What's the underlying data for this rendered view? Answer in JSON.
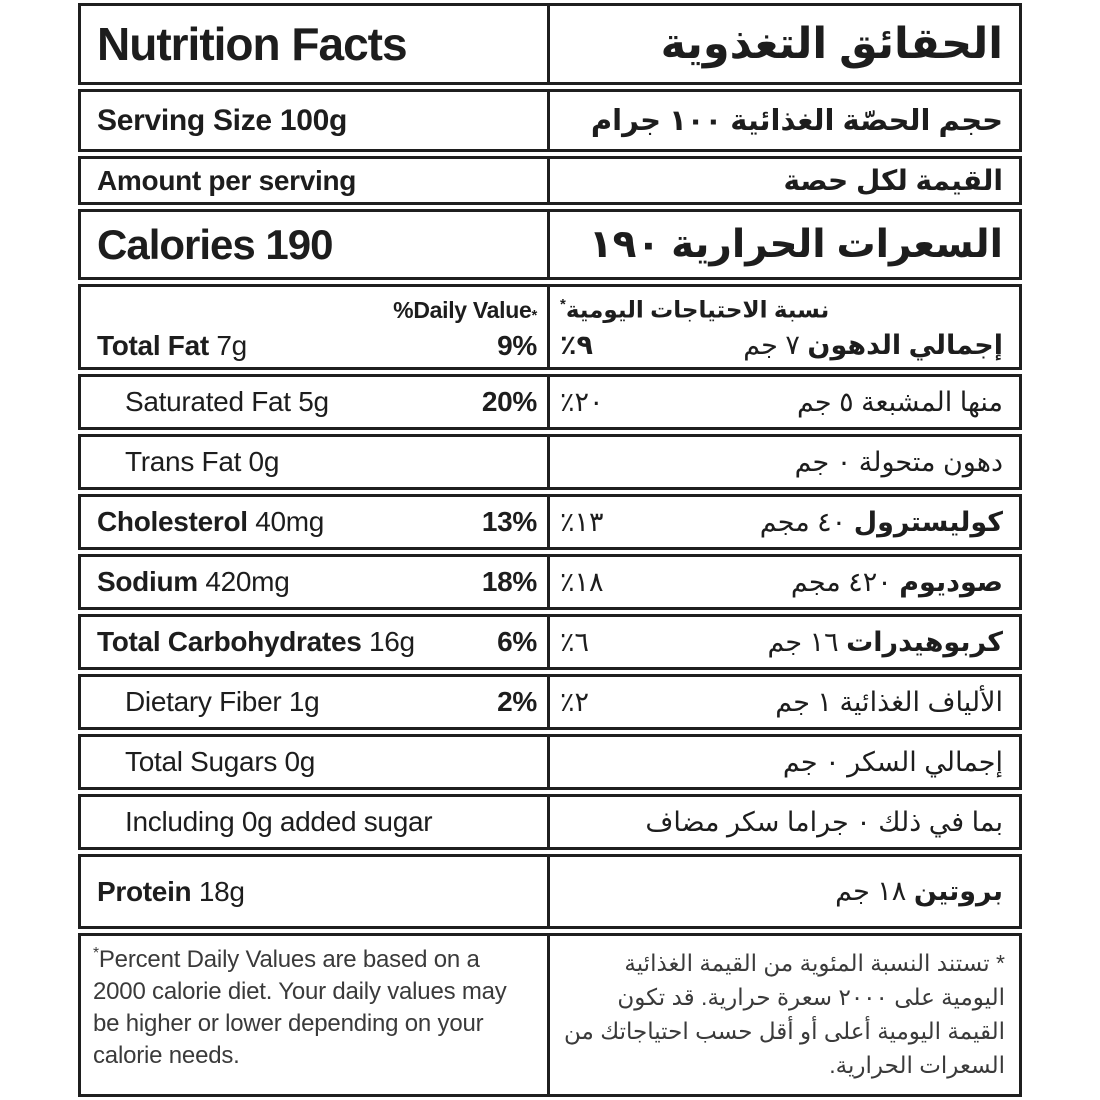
{
  "header": {
    "en": "Nutrition Facts",
    "ar": "الحقائق التغذوية"
  },
  "serving": {
    "en": "Serving Size 100g",
    "ar": "حجم الحصّة الغذائية ١٠٠ جرام"
  },
  "amount_per_serving": {
    "en": "Amount per serving",
    "ar": "القيمة لكل حصة"
  },
  "calories": {
    "en": "Calories 190",
    "ar": "السعرات الحرارية ١٩٠"
  },
  "daily_value_header": {
    "en": "%Daily Value",
    "ar": "نسبة الاحتياجات اليومية",
    "star": "*"
  },
  "rows": [
    {
      "slug": "total-fat",
      "en_bold": "Total Fat",
      "en_rest": " 7g",
      "en_dv": "9%",
      "ar_dv": "٪٩",
      "ar_dv_bold": true,
      "ar_bold": "إجمالي الدهون",
      "ar_rest": " ٧ جم",
      "indent": false,
      "tall": false
    },
    {
      "slug": "saturated-fat",
      "en_bold": "",
      "en_rest": "Saturated Fat 5g",
      "en_dv": "20%",
      "ar_dv": "٪٢٠",
      "ar_dv_bold": false,
      "ar_bold": "",
      "ar_rest": "منها المشبعة ٥ جم",
      "indent": true,
      "tall": false
    },
    {
      "slug": "trans-fat",
      "en_bold": "",
      "en_rest": "Trans Fat 0g",
      "en_dv": "",
      "ar_dv": "",
      "ar_dv_bold": false,
      "ar_bold": "",
      "ar_rest": "دهون متحولة ٠ جم",
      "indent": true,
      "tall": false
    },
    {
      "slug": "cholesterol",
      "en_bold": "Cholesterol",
      "en_rest": " 40mg",
      "en_dv": "13%",
      "ar_dv": "٪١٣",
      "ar_dv_bold": false,
      "ar_bold": "كوليسترول",
      "ar_rest": " ٤٠ مجم",
      "indent": false,
      "tall": false
    },
    {
      "slug": "sodium",
      "en_bold": "Sodium",
      "en_rest": " 420mg",
      "en_dv": "18%",
      "ar_dv": "٪١٨",
      "ar_dv_bold": false,
      "ar_bold": "صوديوم",
      "ar_rest": " ٤٢٠ مجم",
      "indent": false,
      "tall": false
    },
    {
      "slug": "total-carbohydrates",
      "en_bold": "Total Carbohydrates",
      "en_rest": " 16g",
      "en_dv": "6%",
      "ar_dv": "٪٦",
      "ar_dv_bold": false,
      "ar_bold": "كربوهيدرات",
      "ar_rest": " ١٦ جم",
      "indent": false,
      "tall": false
    },
    {
      "slug": "dietary-fiber",
      "en_bold": "",
      "en_rest": "Dietary Fiber 1g",
      "en_dv": "2%",
      "ar_dv": "٪٢",
      "ar_dv_bold": false,
      "ar_bold": "",
      "ar_rest": "الألياف الغذائية ١ جم",
      "indent": true,
      "tall": false
    },
    {
      "slug": "total-sugars",
      "en_bold": "",
      "en_rest": "Total Sugars 0g",
      "en_dv": "",
      "ar_dv": "",
      "ar_dv_bold": false,
      "ar_bold": "",
      "ar_rest": "إجمالي السكر ٠ جم",
      "indent": true,
      "tall": false
    },
    {
      "slug": "added-sugar",
      "en_bold": "",
      "en_rest": "Including 0g added sugar",
      "en_dv": "",
      "ar_dv": "",
      "ar_dv_bold": false,
      "ar_bold": "",
      "ar_rest": "بما في ذلك ٠ جراما سكر مضاف",
      "indent": true,
      "tall": false
    },
    {
      "slug": "protein",
      "en_bold": "Protein",
      "en_rest": " 18g",
      "en_dv": "",
      "ar_dv": "",
      "ar_dv_bold": false,
      "ar_bold": "بروتين",
      "ar_rest": " ١٨ جم",
      "indent": false,
      "tall": true
    }
  ],
  "footnote": {
    "en_star": "*",
    "en": "Percent Daily Values are based on a 2000 calorie diet. Your daily values may be higher or lower depending on your calorie needs.",
    "ar": "* تستند النسبة المئوية من القيمة الغذائية اليومية على ٢٠٠٠ سعرة حرارية. قد تكون القيمة اليومية أعلى أو أقل حسب احتياجاتك من السعرات الحرارية."
  }
}
